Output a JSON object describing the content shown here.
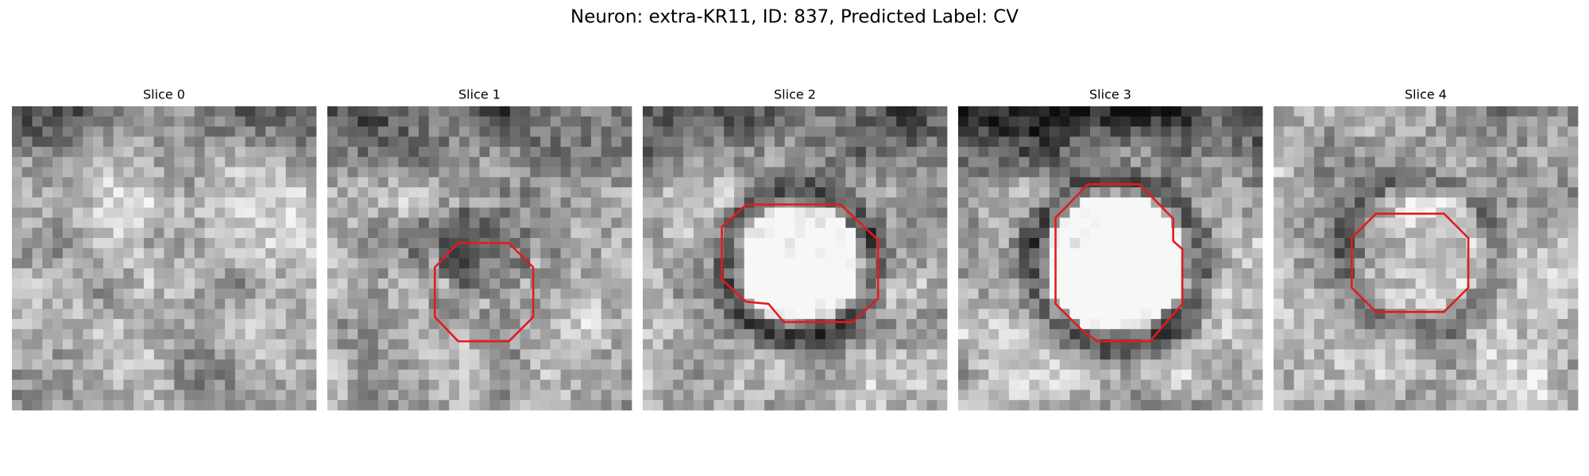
{
  "title": "Neuron: extra-KR11, ID: 837, Predicted Label: CV",
  "panels": [
    {
      "title": "Slice 0"
    },
    {
      "title": "Slice 1"
    },
    {
      "title": "Slice 2"
    },
    {
      "title": "Slice 3"
    },
    {
      "title": "Slice 4"
    }
  ]
}
